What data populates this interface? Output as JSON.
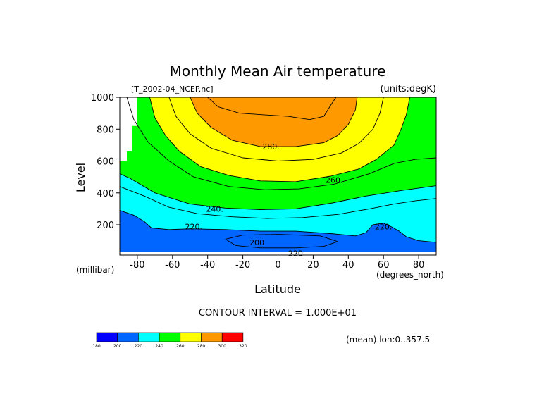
{
  "chart_data": {
    "type": "contour",
    "title": "Monthly Mean Air temperature",
    "file_label": "[T_2002-04_NCEP.nc]",
    "units_label": "(units:degK)",
    "xlabel": "Latitude",
    "x_unit": "(degrees_north)",
    "ylabel": "Level",
    "y_unit": "(millibar)",
    "xlim": [
      -90,
      90
    ],
    "ylim": [
      1000,
      10
    ],
    "x_ticks": [
      "-80",
      "-60",
      "-40",
      "-20",
      "0",
      "20",
      "40",
      "60",
      "80"
    ],
    "x_tick_values": [
      -80,
      -60,
      -40,
      -20,
      0,
      20,
      40,
      60,
      80
    ],
    "y_ticks": [
      "200",
      "400",
      "600",
      "800",
      "1000"
    ],
    "y_tick_values": [
      200,
      400,
      600,
      800,
      1000
    ],
    "contour_interval_text": "CONTOUR INTERVAL = 1.000E+01",
    "averaging_note": "(mean) lon:0..357.5",
    "contour_labels": [
      {
        "text": "220",
        "lat": 10,
        "level": 20
      },
      {
        "text": "200",
        "lat": -12,
        "level": 90
      },
      {
        "text": "220.",
        "lat": -48,
        "level": 190
      },
      {
        "text": "220.",
        "lat": 60,
        "level": 190
      },
      {
        "text": "240.",
        "lat": -36,
        "level": 300
      },
      {
        "text": "260.",
        "lat": 32,
        "level": 480
      },
      {
        "text": "280.",
        "lat": -4,
        "level": 690
      }
    ],
    "colorbar": {
      "levels": [
        "180",
        "200",
        "220",
        "240",
        "260",
        "280",
        "300",
        "320"
      ],
      "colors": [
        "#0000ff",
        "#0066ff",
        "#00ffff",
        "#00ff00",
        "#ffff00",
        "#ff9900",
        "#ff0000"
      ]
    },
    "bands": [
      {
        "range": "190-210",
        "color": "#0000ff",
        "polygon": [
          [
            -14.9,
            60
          ],
          [
            16.6,
            60
          ],
          [
            16.6,
            115
          ],
          [
            -14.9,
            115
          ]
        ]
      },
      {
        "range": "210-220",
        "color": "#0066ff",
        "polygon": [
          [
            -90,
            30
          ],
          [
            90,
            30
          ],
          [
            90,
            90
          ],
          [
            80,
            100
          ],
          [
            73,
            125
          ],
          [
            69,
            160
          ],
          [
            65,
            185
          ],
          [
            60,
            210
          ],
          [
            54,
            200
          ],
          [
            50,
            150
          ],
          [
            44,
            130
          ],
          [
            30,
            145
          ],
          [
            10,
            160
          ],
          [
            -10,
            160
          ],
          [
            -30,
            170
          ],
          [
            -50,
            175
          ],
          [
            -62,
            170
          ],
          [
            -72,
            180
          ],
          [
            -76,
            220
          ],
          [
            -82,
            260
          ],
          [
            -90,
            290
          ]
        ]
      },
      {
        "range": "220-240",
        "color": "#00ffff",
        "polygon": [
          [
            -90,
            290
          ],
          [
            -82,
            260
          ],
          [
            -76,
            220
          ],
          [
            -72,
            180
          ],
          [
            -62,
            170
          ],
          [
            -50,
            175
          ],
          [
            -30,
            170
          ],
          [
            -10,
            160
          ],
          [
            10,
            160
          ],
          [
            30,
            145
          ],
          [
            44,
            130
          ],
          [
            50,
            150
          ],
          [
            54,
            200
          ],
          [
            60,
            210
          ],
          [
            65,
            185
          ],
          [
            69,
            160
          ],
          [
            73,
            125
          ],
          [
            80,
            100
          ],
          [
            90,
            90
          ],
          [
            90,
            445
          ],
          [
            70,
            415
          ],
          [
            50,
            380
          ],
          [
            30,
            335
          ],
          [
            10,
            300
          ],
          [
            -10,
            295
          ],
          [
            -30,
            305
          ],
          [
            -50,
            330
          ],
          [
            -70,
            400
          ],
          [
            -84,
            490
          ],
          [
            -90,
            520
          ]
        ]
      },
      {
        "range": "240-260",
        "color": "#00ff00",
        "polygon": [
          [
            -90,
            520
          ],
          [
            -84,
            490
          ],
          [
            -70,
            400
          ],
          [
            -50,
            330
          ],
          [
            -30,
            305
          ],
          [
            -10,
            295
          ],
          [
            10,
            300
          ],
          [
            30,
            335
          ],
          [
            50,
            380
          ],
          [
            70,
            415
          ],
          [
            90,
            445
          ],
          [
            90,
            1000
          ],
          [
            -90,
            1000
          ]
        ]
      },
      {
        "range": "260-280",
        "color": "#ffff00",
        "polygon": [
          [
            -90,
            1000
          ],
          [
            -73,
            1000
          ],
          [
            -70,
            870
          ],
          [
            -64,
            760
          ],
          [
            -56,
            660
          ],
          [
            -44,
            565
          ],
          [
            -28,
            510
          ],
          [
            -10,
            475
          ],
          [
            10,
            470
          ],
          [
            30,
            505
          ],
          [
            46,
            550
          ],
          [
            56,
            610
          ],
          [
            66,
            700
          ],
          [
            70,
            800
          ],
          [
            73,
            890
          ],
          [
            75,
            1000
          ],
          [
            90,
            1000
          ],
          [
            90,
            1000
          ]
        ]
      },
      {
        "range": "280-300",
        "color": "#ff9900",
        "polygon": [
          [
            -50,
            1000
          ],
          [
            -46,
            900
          ],
          [
            -38,
            810
          ],
          [
            -26,
            730
          ],
          [
            -10,
            690
          ],
          [
            10,
            690
          ],
          [
            26,
            715
          ],
          [
            34,
            760
          ],
          [
            40,
            830
          ],
          [
            44,
            920
          ],
          [
            45,
            1000
          ]
        ]
      }
    ],
    "missing_regions": [
      {
        "polygon": [
          [
            -90,
            600
          ],
          [
            -86,
            600
          ],
          [
            -86,
            660
          ],
          [
            -83,
            660
          ],
          [
            -83,
            820
          ],
          [
            -80,
            820
          ],
          [
            -80,
            1000
          ],
          [
            -90,
            1000
          ]
        ]
      }
    ],
    "contour_lines": [
      {
        "value": "220",
        "points": [
          [
            -90,
            290
          ],
          [
            -82,
            260
          ],
          [
            -76,
            220
          ],
          [
            -72,
            180
          ],
          [
            -62,
            170
          ],
          [
            -50,
            175
          ],
          [
            -30,
            170
          ],
          [
            -10,
            160
          ],
          [
            10,
            160
          ],
          [
            30,
            145
          ],
          [
            44,
            130
          ],
          [
            50,
            150
          ],
          [
            54,
            200
          ],
          [
            60,
            210
          ],
          [
            65,
            185
          ],
          [
            69,
            160
          ],
          [
            73,
            125
          ],
          [
            80,
            100
          ],
          [
            90,
            90
          ]
        ]
      },
      {
        "value": "230",
        "points": [
          [
            -90,
            440
          ],
          [
            -76,
            380
          ],
          [
            -62,
            310
          ],
          [
            -46,
            270
          ],
          [
            -26,
            250
          ],
          [
            -6,
            240
          ],
          [
            14,
            245
          ],
          [
            34,
            265
          ],
          [
            52,
            300
          ],
          [
            66,
            330
          ],
          [
            78,
            350
          ],
          [
            90,
            365
          ]
        ]
      },
      {
        "value": "240",
        "points": [
          [
            -90,
            520
          ],
          [
            -84,
            490
          ],
          [
            -70,
            400
          ],
          [
            -50,
            330
          ],
          [
            -30,
            305
          ],
          [
            -10,
            295
          ],
          [
            10,
            300
          ],
          [
            30,
            335
          ],
          [
            50,
            380
          ],
          [
            70,
            415
          ],
          [
            90,
            445
          ]
        ]
      },
      {
        "value": "250",
        "points": [
          [
            -86,
            1000
          ],
          [
            -82,
            860
          ],
          [
            -74,
            720
          ],
          [
            -62,
            600
          ],
          [
            -48,
            500
          ],
          [
            -28,
            440
          ],
          [
            -8,
            420
          ],
          [
            12,
            425
          ],
          [
            32,
            455
          ],
          [
            52,
            520
          ],
          [
            66,
            585
          ],
          [
            78,
            610
          ],
          [
            90,
            620
          ]
        ]
      },
      {
        "value": "260",
        "points": [
          [
            -73,
            1000
          ],
          [
            -70,
            870
          ],
          [
            -64,
            760
          ],
          [
            -56,
            660
          ],
          [
            -44,
            565
          ],
          [
            -28,
            510
          ],
          [
            -10,
            475
          ],
          [
            10,
            470
          ],
          [
            30,
            505
          ],
          [
            46,
            550
          ],
          [
            56,
            610
          ],
          [
            66,
            700
          ],
          [
            70,
            800
          ],
          [
            73,
            890
          ],
          [
            75,
            1000
          ]
        ]
      },
      {
        "value": "270",
        "points": [
          [
            -62,
            1000
          ],
          [
            -58,
            880
          ],
          [
            -50,
            770
          ],
          [
            -38,
            680
          ],
          [
            -20,
            620
          ],
          [
            0,
            600
          ],
          [
            20,
            610
          ],
          [
            36,
            650
          ],
          [
            46,
            710
          ],
          [
            54,
            800
          ],
          [
            58,
            900
          ],
          [
            60,
            1000
          ]
        ]
      },
      {
        "value": "280",
        "points": [
          [
            -50,
            1000
          ],
          [
            -46,
            900
          ],
          [
            -38,
            810
          ],
          [
            -26,
            730
          ],
          [
            -10,
            690
          ],
          [
            10,
            690
          ],
          [
            26,
            715
          ],
          [
            34,
            760
          ],
          [
            40,
            830
          ],
          [
            44,
            920
          ],
          [
            45,
            1000
          ]
        ]
      },
      {
        "value": "290",
        "points": [
          [
            -40,
            1000
          ],
          [
            -34,
            940
          ],
          [
            -22,
            900
          ],
          [
            -8,
            890
          ],
          [
            6,
            880
          ],
          [
            18,
            860
          ],
          [
            26,
            880
          ],
          [
            30,
            950
          ],
          [
            33,
            1000
          ]
        ]
      },
      {
        "value": "210",
        "points": [
          [
            -30,
            110
          ],
          [
            -24,
            70
          ],
          [
            -10,
            55
          ],
          [
            10,
            55
          ],
          [
            26,
            65
          ],
          [
            34,
            95
          ],
          [
            24,
            130
          ],
          [
            0,
            140
          ],
          [
            -20,
            135
          ],
          [
            -30,
            110
          ]
        ]
      }
    ]
  }
}
